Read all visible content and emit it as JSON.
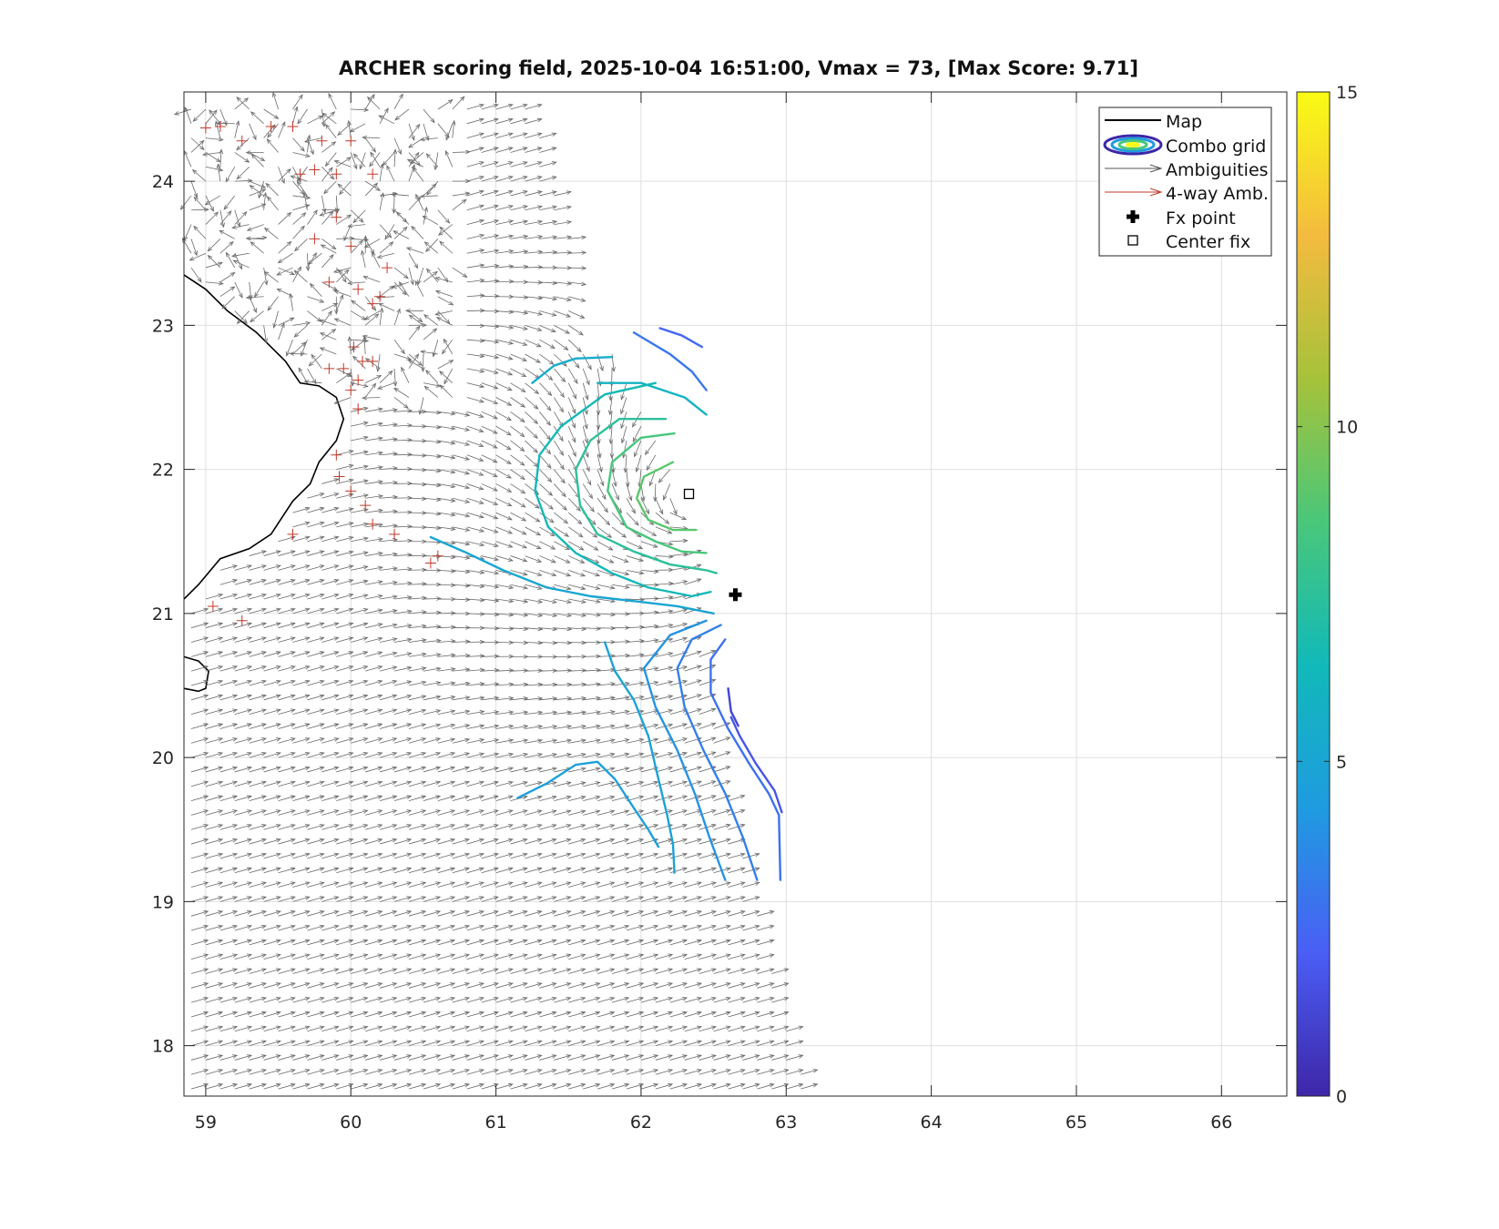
{
  "chart_data": {
    "type": "contour",
    "title": "ARCHER scoring field, 2025-10-04 16:51:00, Vmax = 73, [Max Score: 9.71]",
    "xlabel": "",
    "ylabel": "",
    "xlim": [
      58.85,
      66.45
    ],
    "ylim": [
      17.65,
      24.62
    ],
    "x_ticks": [
      59,
      60,
      61,
      62,
      63,
      64,
      65,
      66
    ],
    "y_ticks": [
      18,
      19,
      20,
      21,
      22,
      23,
      24
    ],
    "grid": true,
    "colorbar": {
      "range": [
        0,
        15
      ],
      "ticks": [
        0,
        5,
        10,
        15
      ],
      "colors": [
        "#3e26a8",
        "#4a5ef5",
        "#1f9be0",
        "#11b9b9",
        "#49c77a",
        "#a6c23a",
        "#f4bb3f",
        "#f9fb14"
      ]
    },
    "legend": {
      "placement": "top-right",
      "entries": [
        "Map",
        "Combo grid",
        "Ambiguities",
        "4-way Amb.",
        "Fx point",
        "Center fix"
      ]
    },
    "markers": {
      "fx_point": {
        "label": "Fx point",
        "x": 62.65,
        "y": 21.13
      },
      "center_fix": {
        "label": "Center fix",
        "x": 62.33,
        "y": 21.83
      }
    },
    "wind_center": {
      "x": 62.3,
      "y": 21.8
    },
    "contours": [
      {
        "level": 9.0,
        "points": [
          [
            62.22,
            22.05
          ],
          [
            62.02,
            21.95
          ],
          [
            61.97,
            21.8
          ],
          [
            62.05,
            21.65
          ],
          [
            62.22,
            21.58
          ],
          [
            62.38,
            21.58
          ]
        ]
      },
      {
        "level": 8.5,
        "points": [
          [
            62.23,
            22.25
          ],
          [
            62.0,
            22.22
          ],
          [
            61.8,
            22.05
          ],
          [
            61.77,
            21.85
          ],
          [
            61.9,
            21.6
          ],
          [
            62.1,
            21.5
          ],
          [
            62.28,
            21.43
          ],
          [
            62.45,
            21.42
          ]
        ]
      },
      {
        "level": 7.5,
        "points": [
          [
            62.17,
            22.35
          ],
          [
            61.85,
            22.35
          ],
          [
            61.65,
            22.2
          ],
          [
            61.55,
            22.0
          ],
          [
            61.58,
            21.75
          ],
          [
            61.7,
            21.55
          ],
          [
            61.95,
            21.43
          ],
          [
            62.2,
            21.34
          ],
          [
            62.45,
            21.3
          ],
          [
            62.52,
            21.28
          ]
        ]
      },
      {
        "level": 6.5,
        "points": [
          [
            62.1,
            22.6
          ],
          [
            61.75,
            22.52
          ],
          [
            61.45,
            22.3
          ],
          [
            61.3,
            22.1
          ],
          [
            61.27,
            21.85
          ],
          [
            61.36,
            21.6
          ],
          [
            61.55,
            21.42
          ],
          [
            61.8,
            21.28
          ],
          [
            62.05,
            21.18
          ],
          [
            62.35,
            21.12
          ],
          [
            62.48,
            21.15
          ]
        ]
      },
      {
        "level": 5.5,
        "points": [
          [
            61.8,
            22.78
          ],
          [
            61.55,
            22.77
          ],
          [
            61.4,
            22.72
          ],
          [
            61.25,
            22.6
          ]
        ]
      },
      {
        "level": 5.0,
        "points": [
          [
            60.55,
            21.53
          ],
          [
            60.8,
            21.42
          ],
          [
            61.05,
            21.3
          ],
          [
            61.35,
            21.18
          ],
          [
            61.65,
            21.12
          ],
          [
            62.0,
            21.08
          ],
          [
            62.25,
            21.05
          ],
          [
            62.5,
            21.0
          ]
        ]
      },
      {
        "level": 4.8,
        "points": [
          [
            61.75,
            20.8
          ],
          [
            61.82,
            20.6
          ],
          [
            61.95,
            20.4
          ],
          [
            62.05,
            20.15
          ],
          [
            62.12,
            19.85
          ],
          [
            62.18,
            19.6
          ],
          [
            62.22,
            19.4
          ],
          [
            62.23,
            19.2
          ]
        ]
      },
      {
        "level": 4.6,
        "points": [
          [
            61.15,
            19.72
          ],
          [
            61.35,
            19.82
          ],
          [
            61.55,
            19.95
          ],
          [
            61.7,
            19.97
          ],
          [
            61.82,
            19.85
          ],
          [
            61.95,
            19.65
          ],
          [
            62.05,
            19.5
          ],
          [
            62.12,
            19.38
          ]
        ]
      },
      {
        "level": 4.0,
        "points": [
          [
            62.45,
            20.95
          ],
          [
            62.2,
            20.85
          ],
          [
            62.02,
            20.62
          ],
          [
            62.1,
            20.35
          ],
          [
            62.25,
            20.05
          ],
          [
            62.37,
            19.75
          ],
          [
            62.47,
            19.45
          ],
          [
            62.58,
            19.15
          ]
        ]
      },
      {
        "level": 3.3,
        "points": [
          [
            62.55,
            20.92
          ],
          [
            62.35,
            20.82
          ],
          [
            62.25,
            20.62
          ],
          [
            62.3,
            20.35
          ],
          [
            62.43,
            20.05
          ],
          [
            62.58,
            19.75
          ],
          [
            62.7,
            19.45
          ],
          [
            62.8,
            19.15
          ]
        ]
      },
      {
        "level": 2.8,
        "points": [
          [
            62.58,
            20.82
          ],
          [
            62.48,
            20.68
          ],
          [
            62.48,
            20.45
          ],
          [
            62.6,
            20.2
          ],
          [
            62.75,
            19.95
          ],
          [
            62.88,
            19.75
          ],
          [
            62.95,
            19.6
          ],
          [
            62.96,
            19.15
          ]
        ]
      },
      {
        "level": 1.8,
        "points": [
          [
            62.62,
            20.28
          ],
          [
            62.68,
            20.15
          ],
          [
            62.79,
            19.96
          ],
          [
            62.92,
            19.77
          ],
          [
            62.97,
            19.62
          ]
        ]
      },
      {
        "level": 1.2,
        "points": [
          [
            62.6,
            20.48
          ],
          [
            62.62,
            20.32
          ],
          [
            62.67,
            20.22
          ]
        ]
      },
      {
        "level": 2.5,
        "points": [
          [
            62.13,
            22.98
          ],
          [
            62.28,
            22.93
          ],
          [
            62.42,
            22.85
          ]
        ]
      },
      {
        "level": 3.0,
        "points": [
          [
            61.95,
            22.95
          ],
          [
            62.2,
            22.8
          ],
          [
            62.35,
            22.68
          ],
          [
            62.45,
            22.55
          ]
        ]
      },
      {
        "level": 6.0,
        "points": [
          [
            61.7,
            22.6
          ],
          [
            62.0,
            22.6
          ],
          [
            62.3,
            22.5
          ],
          [
            62.45,
            22.38
          ]
        ]
      }
    ],
    "coastline": [
      [
        [
          58.85,
          23.35
        ],
        [
          59.0,
          23.25
        ],
        [
          59.15,
          23.1
        ],
        [
          59.35,
          22.95
        ],
        [
          59.55,
          22.75
        ],
        [
          59.65,
          22.6
        ],
        [
          59.78,
          22.58
        ],
        [
          59.9,
          22.5
        ],
        [
          59.95,
          22.35
        ],
        [
          59.9,
          22.2
        ],
        [
          59.78,
          22.05
        ],
        [
          59.72,
          21.9
        ],
        [
          59.6,
          21.78
        ],
        [
          59.45,
          21.55
        ],
        [
          59.3,
          21.45
        ],
        [
          59.1,
          21.38
        ],
        [
          58.95,
          21.2
        ],
        [
          58.85,
          21.1
        ]
      ],
      [
        [
          58.85,
          20.7
        ],
        [
          58.95,
          20.67
        ],
        [
          59.02,
          20.6
        ],
        [
          59.0,
          20.48
        ],
        [
          58.95,
          20.46
        ],
        [
          58.85,
          20.48
        ]
      ]
    ]
  }
}
